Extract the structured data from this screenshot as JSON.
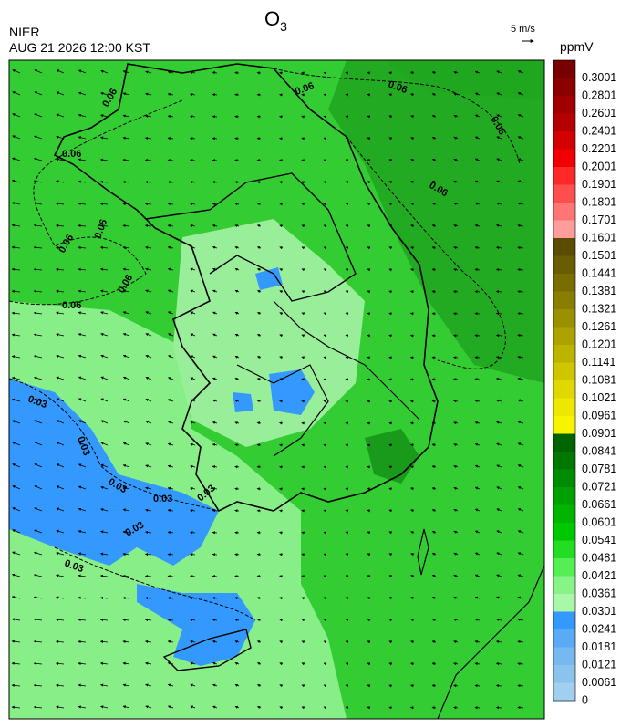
{
  "header": {
    "title": {
      "main": "O",
      "subscript": "3"
    },
    "agency": "NIER",
    "timestamp": "AUG 21 2026 12:00 KST",
    "wind_scale": "5 m/s"
  },
  "contour_labels": [
    "0.06",
    "0.06",
    "0.06",
    "0.06",
    "0.06",
    "0.06",
    "0.06",
    "0.06",
    "0.06",
    "0.06",
    "0.03",
    "0.03",
    "0.03",
    "0.03",
    "0.03",
    "0.03",
    "0.03"
  ],
  "colorbar": {
    "unit": "ppmV",
    "levels": [
      {
        "label": "0.3001",
        "color": "#780000"
      },
      {
        "label": "0.2801",
        "color": "#8c0000"
      },
      {
        "label": "0.2601",
        "color": "#a00000"
      },
      {
        "label": "0.2401",
        "color": "#b40000"
      },
      {
        "label": "0.2201",
        "color": "#d20000"
      },
      {
        "label": "0.2001",
        "color": "#f00000"
      },
      {
        "label": "0.1901",
        "color": "#ff2828"
      },
      {
        "label": "0.1801",
        "color": "#ff4e4e"
      },
      {
        "label": "0.1701",
        "color": "#ff7474"
      },
      {
        "label": "0.1601",
        "color": "#ff9c9c"
      },
      {
        "label": "0.1501",
        "color": "#5a4c00"
      },
      {
        "label": "0.1441",
        "color": "#6a5c00"
      },
      {
        "label": "0.1381",
        "color": "#7a6d00"
      },
      {
        "label": "0.1321",
        "color": "#8a7e00"
      },
      {
        "label": "0.1261",
        "color": "#9b9000"
      },
      {
        "label": "0.1201",
        "color": "#aca200"
      },
      {
        "label": "0.1141",
        "color": "#bdb400"
      },
      {
        "label": "0.1081",
        "color": "#cfc600"
      },
      {
        "label": "0.1021",
        "color": "#e0d800"
      },
      {
        "label": "0.0961",
        "color": "#eee800"
      },
      {
        "label": "0.0901",
        "color": "#f8f400"
      },
      {
        "label": "0.0841",
        "color": "#006400"
      },
      {
        "label": "0.0781",
        "color": "#007800"
      },
      {
        "label": "0.0721",
        "color": "#008c00"
      },
      {
        "label": "0.0661",
        "color": "#00a000"
      },
      {
        "label": "0.0601",
        "color": "#00b400"
      },
      {
        "label": "0.0541",
        "color": "#00c800"
      },
      {
        "label": "0.0481",
        "color": "#22dd22"
      },
      {
        "label": "0.0421",
        "color": "#55ee55"
      },
      {
        "label": "0.0361",
        "color": "#88f488"
      },
      {
        "label": "0.0301",
        "color": "#a8f8a8"
      },
      {
        "label": "0.0241",
        "color": "#3399ff"
      },
      {
        "label": "0.0181",
        "color": "#5aaaf5"
      },
      {
        "label": "0.0121",
        "color": "#76b8f0"
      },
      {
        "label": "0.0061",
        "color": "#8ac4ec"
      },
      {
        "label": "0",
        "color": "#a0d0ee"
      }
    ]
  }
}
